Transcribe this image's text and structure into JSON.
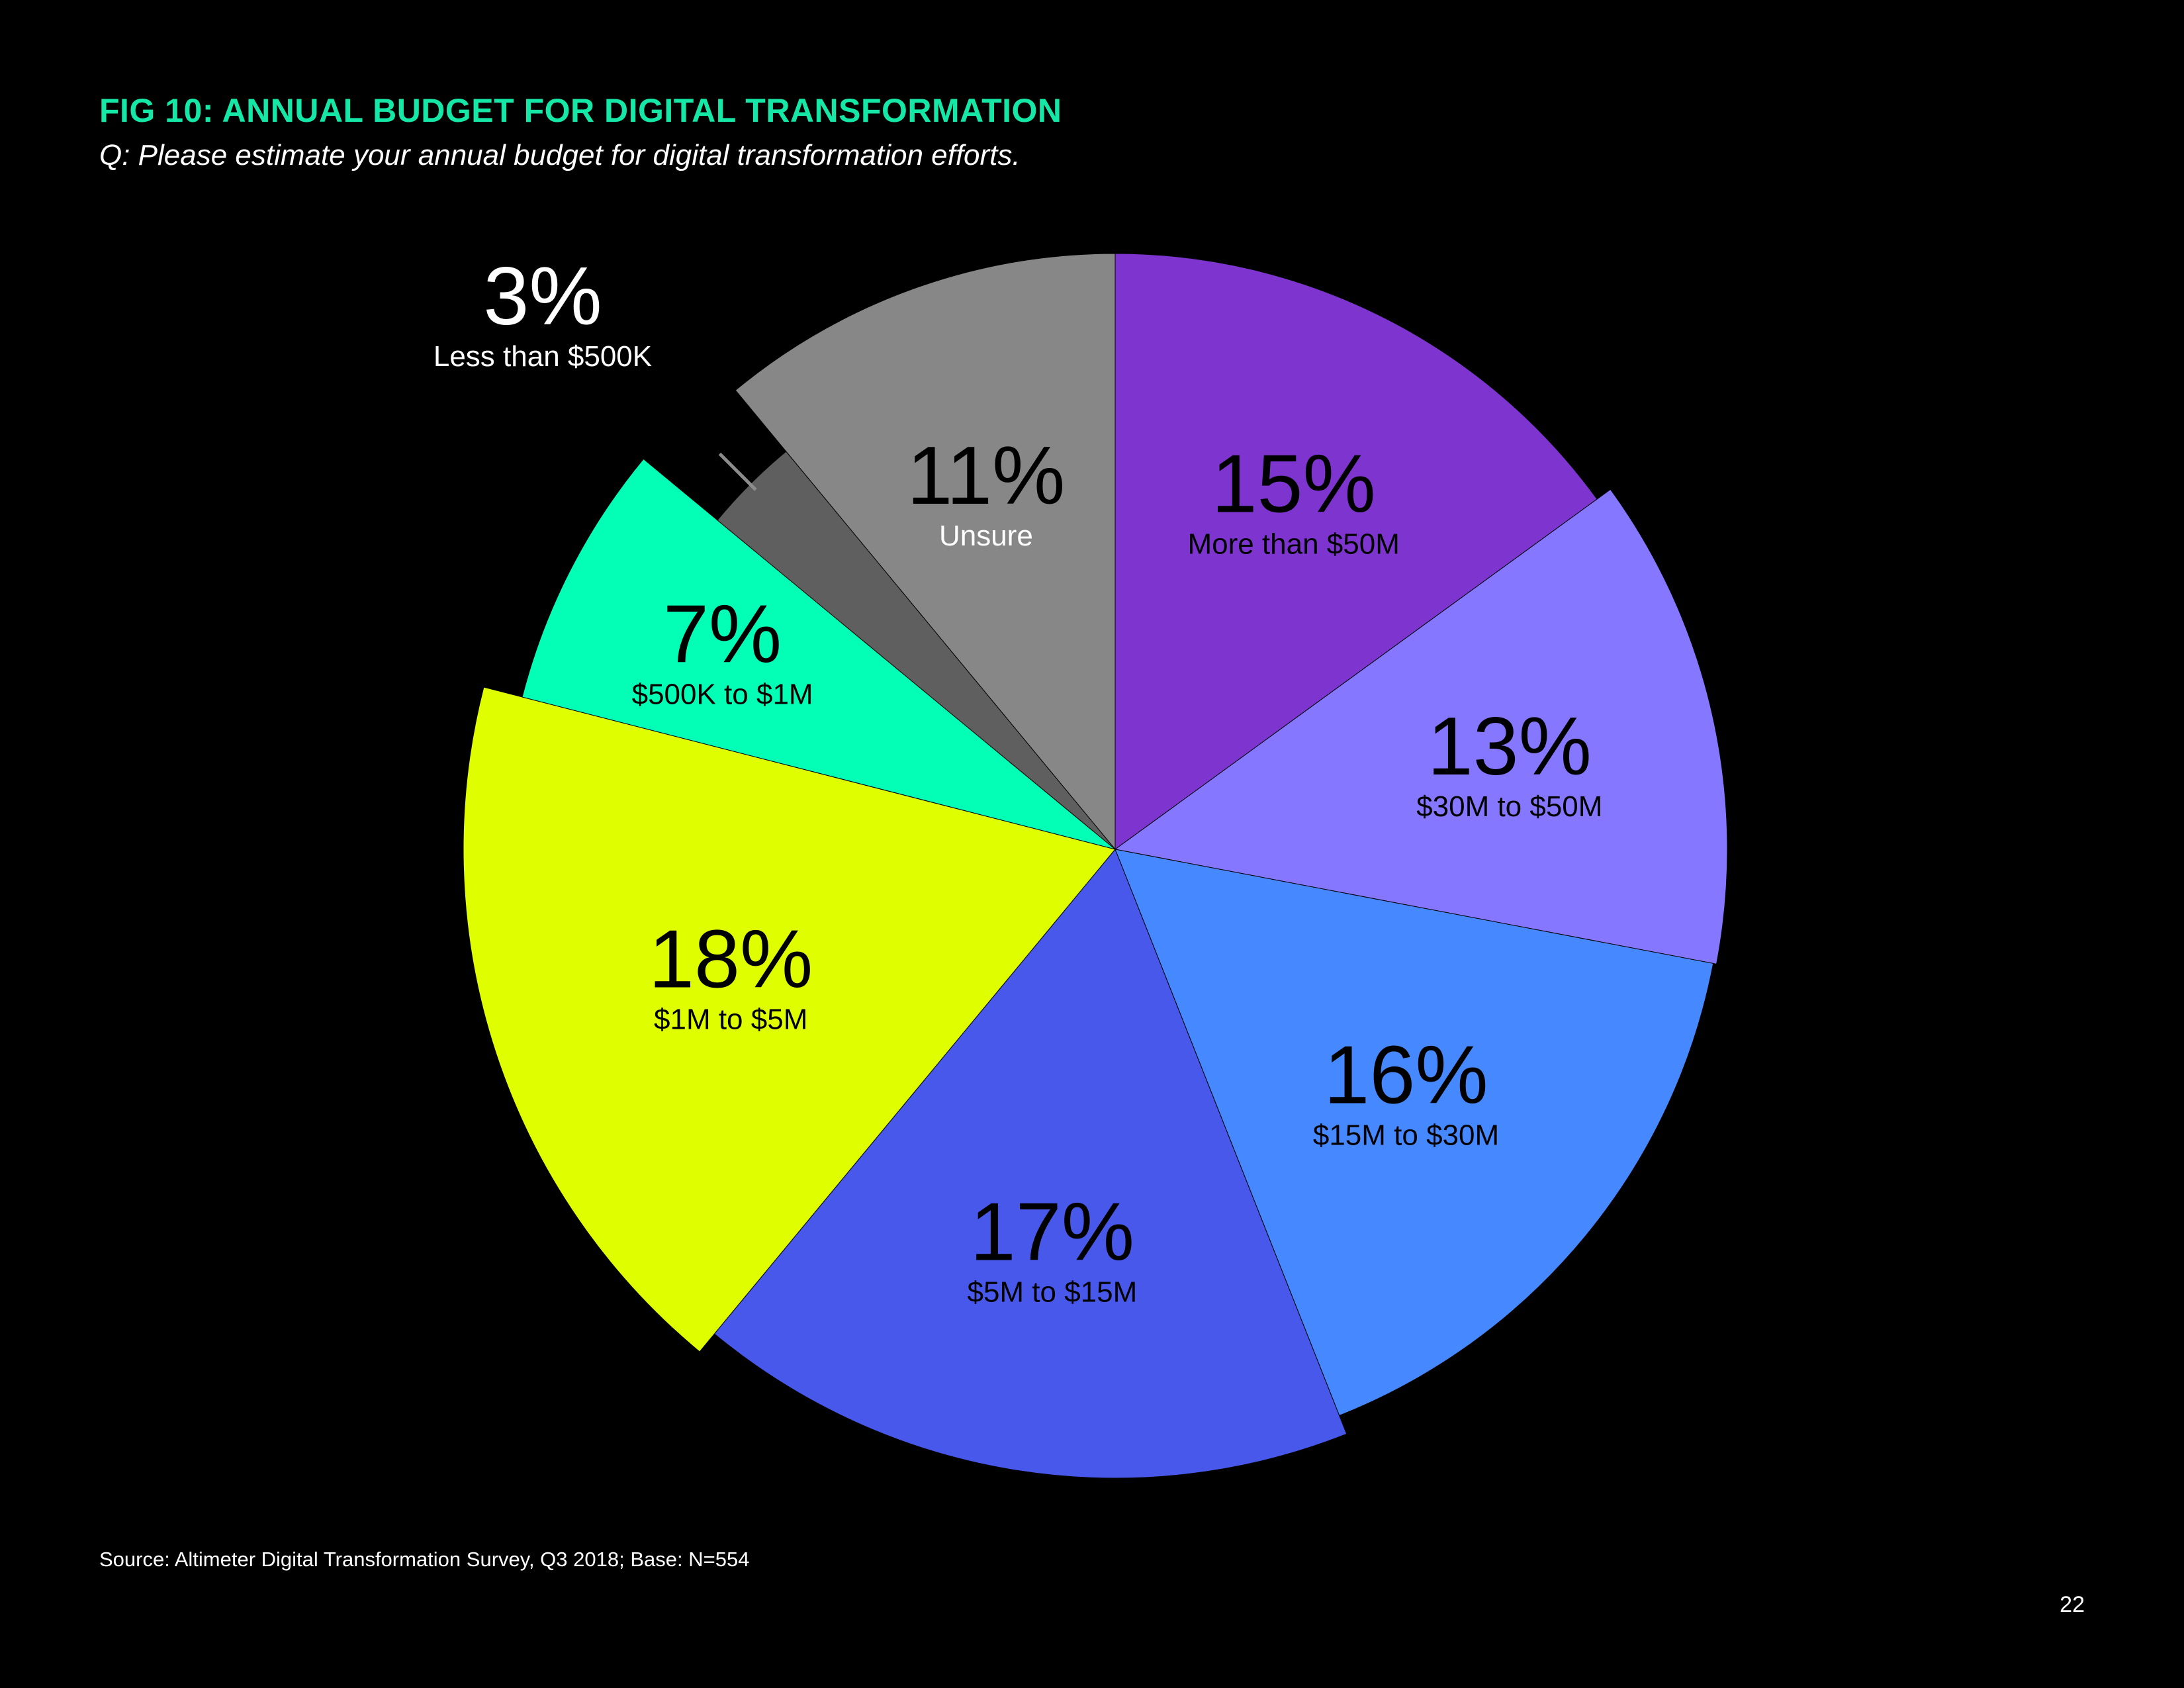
{
  "header": {
    "title": "FIG 10: ANNUAL BUDGET FOR DIGITAL TRANSFORMATION",
    "subtitle": "Q: Please estimate your annual budget for digital transformation efforts."
  },
  "footer": {
    "source": "Source: Altimeter Digital Transformation Survey, Q3 2018; Base: N=554",
    "page_number": "22"
  },
  "chart_data": {
    "type": "pie",
    "title": "FIG 10: ANNUAL BUDGET FOR DIGITAL TRANSFORMATION",
    "start_angle_deg": 0,
    "direction": "clockwise",
    "slices": [
      {
        "category": "More than $50M",
        "value": 15,
        "label": "15%",
        "color": "#7e35d0"
      },
      {
        "category": "$30M to $50M",
        "value": 13,
        "label": "13%",
        "color": "#8577ff"
      },
      {
        "category": "$15M to $30M",
        "value": 16,
        "label": "16%",
        "color": "#4688ff"
      },
      {
        "category": "$5M to $15M",
        "value": 17,
        "label": "17%",
        "color": "#4858eb"
      },
      {
        "category": "$1M to $5M",
        "value": 18,
        "label": "18%",
        "color": "#dfff00"
      },
      {
        "category": "$500K to $1M",
        "value": 7,
        "label": "7%",
        "color": "#03ffb6"
      },
      {
        "category": "Less than $500K",
        "value": 3,
        "label": "3%",
        "color": "#5f5f5f"
      },
      {
        "category": "Unsure",
        "value": 11,
        "label": "11%",
        "color": "#878787"
      }
    ]
  }
}
